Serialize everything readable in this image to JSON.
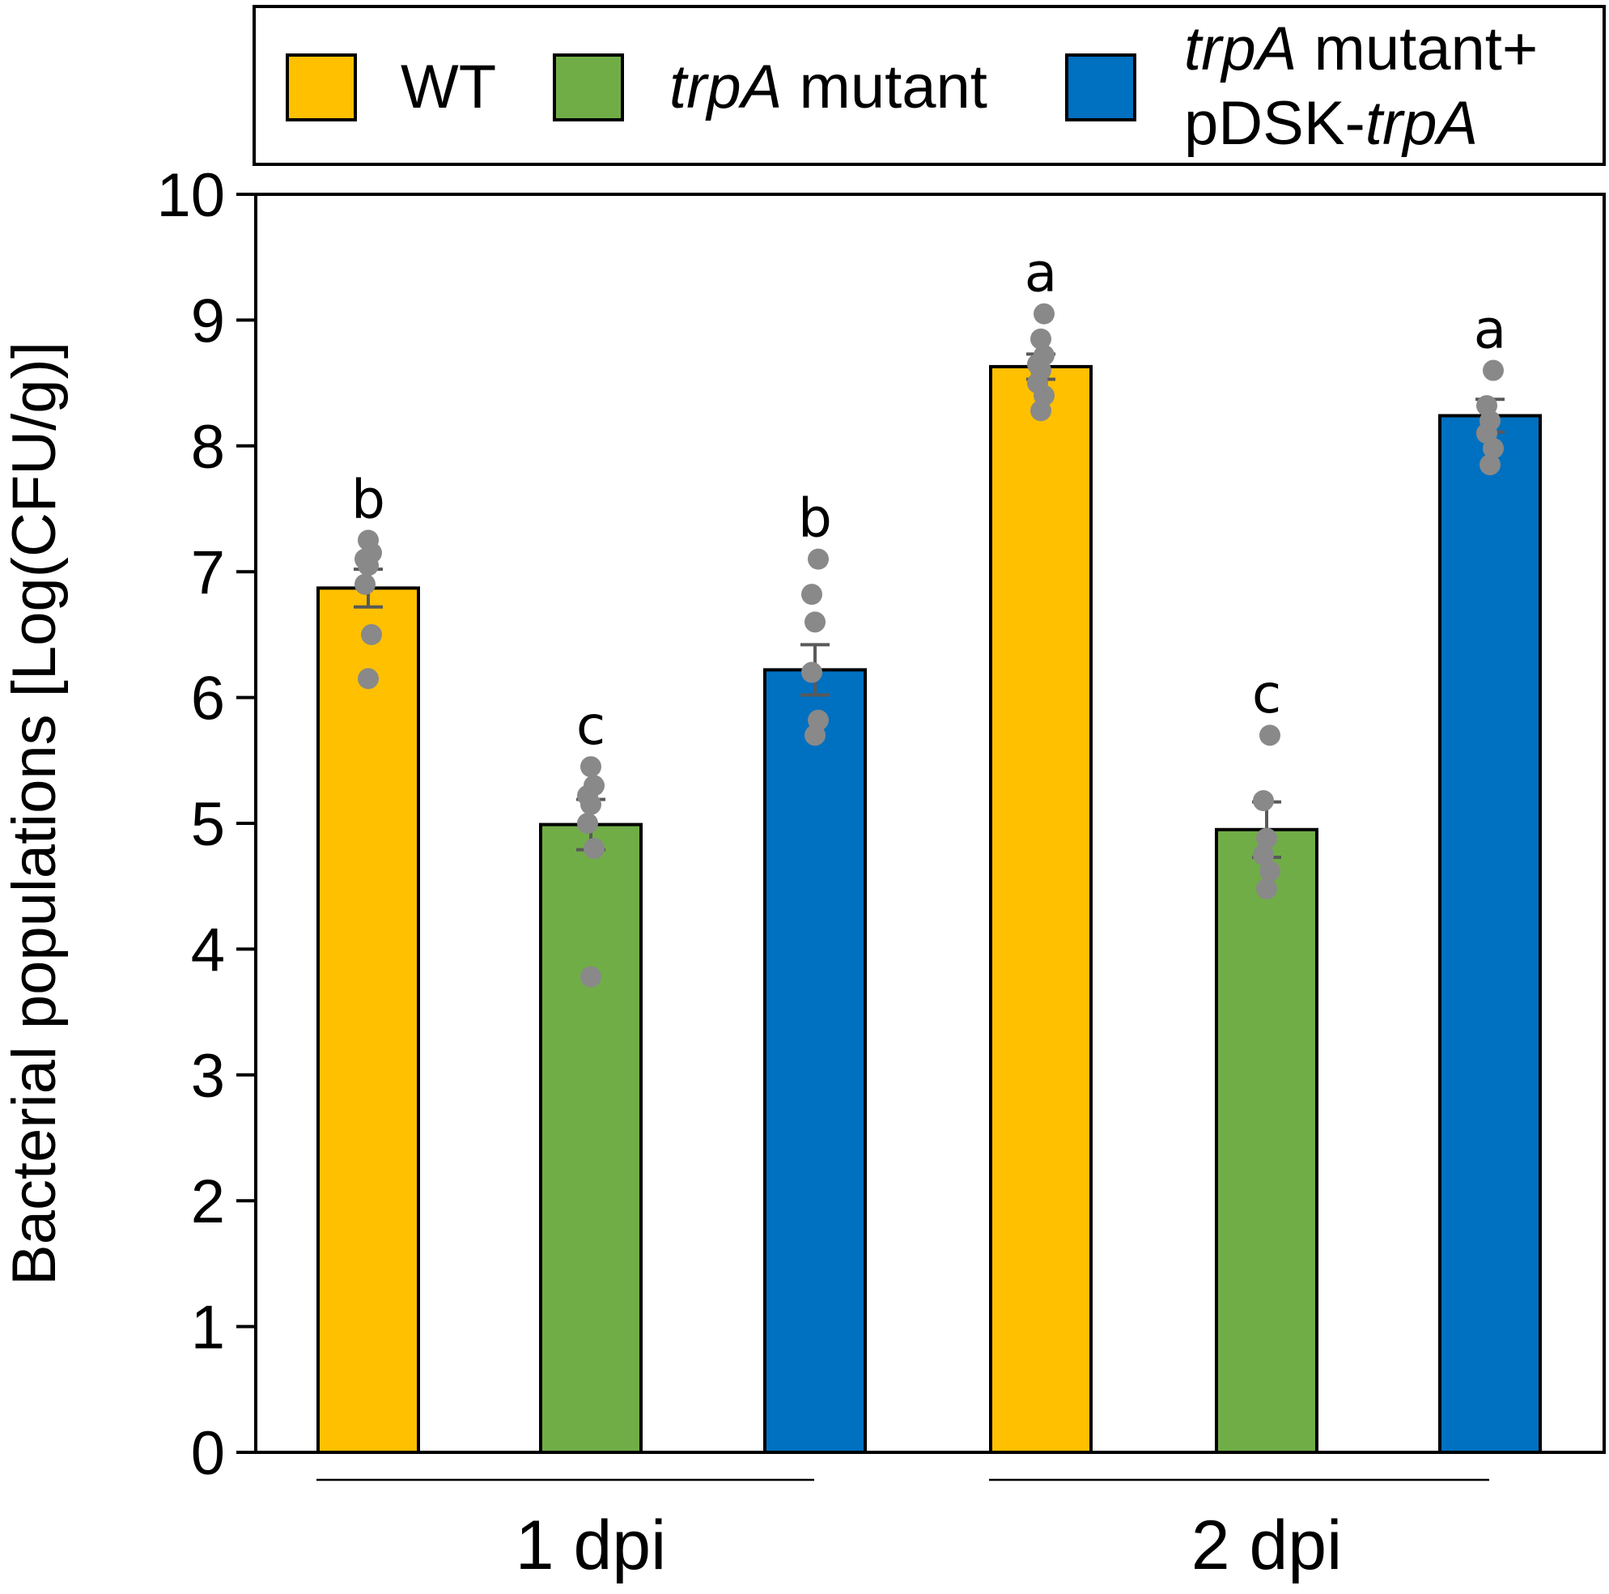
{
  "chart_data": {
    "type": "bar",
    "title": "",
    "xlabel": "",
    "ylabel": "Bacterial populations [Log(CFU/g)]",
    "ylim": [
      0,
      10
    ],
    "yticks": [
      "0",
      "1",
      "2",
      "3",
      "4",
      "5",
      "6",
      "7",
      "8",
      "9",
      "10"
    ],
    "categories": [
      "1 dpi",
      "2 dpi"
    ],
    "legend": {
      "position": "top",
      "entries": [
        {
          "key": "wt",
          "label_parts": [
            {
              "text": "WT",
              "italic": false
            }
          ]
        },
        {
          "key": "mut",
          "label_parts": [
            {
              "text": "trpA",
              "italic": true
            },
            {
              "text": " mutant",
              "italic": false
            }
          ]
        },
        {
          "key": "comp",
          "line1_parts": [
            {
              "text": "trpA",
              "italic": true
            },
            {
              "text": " mutant+",
              "italic": false
            }
          ],
          "line2_parts": [
            {
              "text": "pDSK-",
              "italic": false
            },
            {
              "text": "trpA",
              "italic": true
            }
          ]
        }
      ]
    },
    "series": [
      {
        "key": "wt",
        "name": "WT",
        "color": "#FFC000",
        "values": [
          6.87,
          8.63
        ],
        "errors": [
          0.15,
          0.1
        ],
        "letters": [
          "b",
          "a"
        ],
        "points": [
          [
            6.15,
            6.5,
            6.9,
            7.05,
            7.1,
            7.15,
            7.25
          ],
          [
            8.28,
            8.4,
            8.5,
            8.6,
            8.65,
            8.72,
            8.85,
            9.05
          ]
        ]
      },
      {
        "key": "mut",
        "name": "trpA mutant",
        "color": "#70AD47",
        "values": [
          4.99,
          4.95
        ],
        "errors": [
          0.2,
          0.22
        ],
        "letters": [
          "c",
          "c"
        ],
        "points": [
          [
            3.78,
            4.8,
            5.0,
            5.15,
            5.22,
            5.3,
            5.45
          ],
          [
            4.48,
            4.62,
            4.75,
            4.88,
            5.18,
            5.7
          ]
        ]
      },
      {
        "key": "comp",
        "name": "trpA mutant+pDSK-trpA",
        "color": "#0070C0",
        "values": [
          6.22,
          8.24
        ],
        "errors": [
          0.2,
          0.13
        ],
        "letters": [
          "b",
          "a"
        ],
        "points": [
          [
            5.7,
            5.82,
            6.2,
            6.6,
            6.82,
            7.1
          ],
          [
            7.85,
            7.98,
            8.1,
            8.2,
            8.32,
            8.6
          ]
        ]
      }
    ],
    "colors": {
      "point": "#898989",
      "errorbar": "#595959",
      "axis": "#000000"
    }
  }
}
